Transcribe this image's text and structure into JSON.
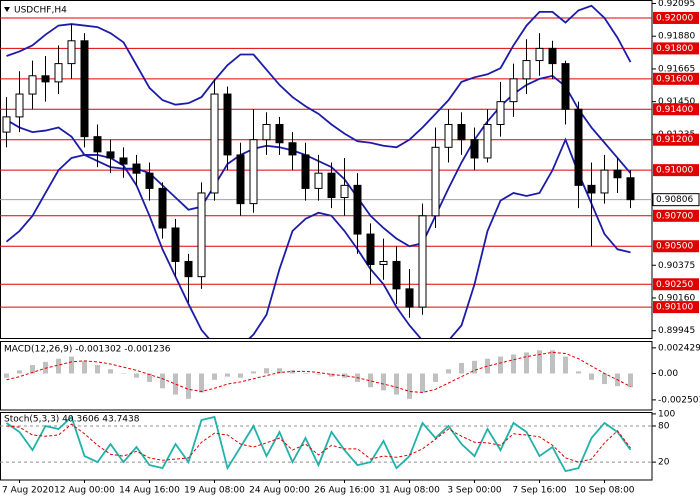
{
  "chart_data": [
    {
      "type": "candlestick",
      "title": "USDCHF,H4",
      "categories": [
        null,
        "7 Aug 2020",
        null,
        null,
        null,
        null,
        "12 Aug 00:00",
        null,
        null,
        null,
        null,
        "14 Aug 16:00",
        null,
        null,
        null,
        null,
        "19 Aug 08:00",
        null,
        null,
        null,
        null,
        "24 Aug 00:00",
        null,
        null,
        null,
        null,
        "26 Aug 16:00",
        null,
        null,
        null,
        null,
        "31 Aug 08:00",
        null,
        null,
        null,
        null,
        "3 Sep 00:00",
        null,
        null,
        null,
        null,
        "7 Sep 16:00",
        null,
        null,
        null,
        null,
        "10 Sep 08:00",
        null,
        null
      ],
      "open": [
        0.9125,
        0.9135,
        0.915,
        0.9162,
        0.9158,
        0.917,
        0.9185,
        0.9122,
        0.9112,
        0.9108,
        0.9104,
        0.9098,
        0.9088,
        0.9062,
        0.904,
        0.903,
        0.9085,
        0.915,
        0.911,
        0.9078,
        0.912,
        0.913,
        0.9118,
        0.911,
        0.9088,
        0.9098,
        0.9082,
        0.909,
        0.9058,
        0.9038,
        0.904,
        0.9022,
        0.901,
        0.907,
        0.9115,
        0.913,
        0.912,
        0.9108,
        0.913,
        0.9145,
        0.916,
        0.9172,
        0.918,
        0.917,
        0.914,
        0.909,
        0.9085,
        0.91,
        0.9095
      ],
      "high": [
        0.9148,
        0.9165,
        0.9172,
        0.9175,
        0.9182,
        0.9196,
        0.919,
        0.913,
        0.912,
        0.9115,
        0.911,
        0.9105,
        0.9092,
        0.9068,
        0.9045,
        0.9092,
        0.916,
        0.9155,
        0.9118,
        0.914,
        0.9138,
        0.9135,
        0.9125,
        0.9118,
        0.911,
        0.9105,
        0.9108,
        0.9098,
        0.9065,
        0.9055,
        0.905,
        0.9035,
        0.9078,
        0.9128,
        0.914,
        0.9138,
        0.9128,
        0.914,
        0.9158,
        0.917,
        0.9186,
        0.919,
        0.9185,
        0.9172,
        0.9145,
        0.9105,
        0.911,
        0.9108,
        0.91
      ],
      "low": [
        0.9115,
        0.9125,
        0.914,
        0.9145,
        0.915,
        0.916,
        0.9115,
        0.9102,
        0.9098,
        0.9095,
        0.909,
        0.908,
        0.9055,
        0.903,
        0.9013,
        0.9022,
        0.908,
        0.91,
        0.907,
        0.9072,
        0.911,
        0.911,
        0.91,
        0.908,
        0.908,
        0.9075,
        0.907,
        0.9045,
        0.9025,
        0.9028,
        0.9012,
        0.9003,
        0.9005,
        0.9062,
        0.9105,
        0.911,
        0.91,
        0.9105,
        0.9122,
        0.9135,
        0.915,
        0.9162,
        0.916,
        0.913,
        0.9075,
        0.905,
        0.9078,
        0.9085,
        0.9075
      ],
      "close": [
        0.9135,
        0.915,
        0.9162,
        0.9158,
        0.917,
        0.9185,
        0.9122,
        0.9112,
        0.9108,
        0.9104,
        0.9098,
        0.9088,
        0.9062,
        0.904,
        0.903,
        0.9085,
        0.915,
        0.911,
        0.9078,
        0.912,
        0.913,
        0.9118,
        0.911,
        0.9088,
        0.9098,
        0.9082,
        0.909,
        0.9058,
        0.9038,
        0.904,
        0.9022,
        0.901,
        0.907,
        0.9115,
        0.913,
        0.912,
        0.9108,
        0.913,
        0.9145,
        0.916,
        0.9172,
        0.918,
        0.917,
        0.914,
        0.909,
        0.9085,
        0.91,
        0.9095,
        0.90806
      ],
      "series": [
        {
          "color": "#1c1ca8",
          "values": [
            0.9175,
            0.9178,
            0.9182,
            0.9189,
            0.9195,
            0.9196,
            0.9195,
            0.9194,
            0.919,
            0.9184,
            0.9169,
            0.9154,
            0.9146,
            0.9143,
            0.9144,
            0.9148,
            0.9159,
            0.9169,
            0.9176,
            0.9176,
            0.9166,
            0.9156,
            0.9148,
            0.9142,
            0.9137,
            0.913,
            0.9124,
            0.9119,
            0.9118,
            0.9116,
            0.9115,
            0.912,
            0.9128,
            0.9137,
            0.9146,
            0.9158,
            0.9161,
            0.9163,
            0.9167,
            0.9182,
            0.9195,
            0.9204,
            0.9204,
            0.9197,
            0.9205,
            0.9208,
            0.92,
            0.9187,
            0.9171
          ]
        },
        {
          "color": "#1c1ca8",
          "values": [
            0.9133,
            0.9128,
            0.9125,
            0.9126,
            0.9128,
            0.9122,
            0.911,
            0.9106,
            0.9102,
            0.9101,
            0.9101,
            0.9098,
            0.909,
            0.9082,
            0.9074,
            0.9076,
            0.909,
            0.9104,
            0.911,
            0.9114,
            0.9116,
            0.9115,
            0.9113,
            0.911,
            0.9106,
            0.9102,
            0.9094,
            0.9082,
            0.907,
            0.9062,
            0.9055,
            0.905,
            0.9052,
            0.907,
            0.9088,
            0.9105,
            0.912,
            0.9132,
            0.9142,
            0.915,
            0.9156,
            0.916,
            0.9162,
            0.9155,
            0.914,
            0.9128,
            0.9118,
            0.9108,
            0.9098
          ]
        },
        {
          "color": "#1c1ca8",
          "values": [
            0.9053,
            0.906,
            0.907,
            0.9085,
            0.91,
            0.9108,
            0.911,
            0.911,
            0.9108,
            0.9103,
            0.909,
            0.907,
            0.9048,
            0.903,
            0.9012,
            0.8995,
            0.8985,
            0.8982,
            0.8984,
            0.8992,
            0.9005,
            0.9035,
            0.906,
            0.9068,
            0.9072,
            0.907,
            0.906,
            0.9048,
            0.9035,
            0.9025,
            0.901,
            0.8998,
            0.8988,
            0.8984,
            0.8988,
            0.8998,
            0.9025,
            0.906,
            0.908,
            0.9085,
            0.9083,
            0.9085,
            0.91,
            0.912,
            0.9098,
            0.9078,
            0.9058,
            0.9048,
            0.9046
          ]
        }
      ],
      "ylim": [
        0.89897,
        0.92118
      ],
      "yticks": [
        0.92095,
        {
          "value": 0.9188,
          "label": "0.91880"
        },
        0.91665,
        {
          "value": 0.9145,
          "label": "0.91450"
        },
        0.91235,
        0.90375,
        {
          "value": 0.9016,
          "label": "0.90160"
        },
        0.89945
      ],
      "levels": [
        {
          "value": 0.92,
          "label": "0.92000"
        },
        {
          "value": 0.918,
          "label": "0.91800"
        },
        {
          "value": 0.916,
          "label": "0.91600"
        },
        {
          "value": 0.914,
          "label": "0.91400"
        },
        {
          "value": 0.912,
          "label": "0.91200"
        },
        {
          "value": 0.91,
          "label": "0.91000"
        },
        {
          "value": 0.907,
          "label": "0.90700"
        },
        {
          "value": 0.905,
          "label": "0.90500"
        },
        {
          "value": 0.9025,
          "label": "0.90250"
        },
        {
          "value": 0.901,
          "label": "0.90100"
        }
      ],
      "level_color": "#e00000",
      "last_price": 0.90806
    },
    {
      "type": "macd",
      "title": "MACD(12,26,9) -0.001302 -0.001236",
      "series": [
        {
          "type": "bar",
          "color": "#c0c0c0",
          "values": [
            -0.0004,
            0.0003,
            0.0008,
            0.0011,
            0.0014,
            0.0016,
            0.0012,
            0.0008,
            0.0004,
            0.0,
            -0.0004,
            -0.0008,
            -0.0014,
            -0.002,
            -0.0024,
            -0.0018,
            -0.0006,
            -0.0003,
            -0.0004,
            0.0002,
            0.0005,
            0.0005,
            0.0003,
            0.0,
            -0.0001,
            -0.0003,
            -0.0004,
            -0.0008,
            -0.0013,
            -0.0016,
            -0.002,
            -0.0024,
            -0.0018,
            -0.0008,
            0.0004,
            0.001,
            0.0012,
            0.0014,
            0.0016,
            0.0018,
            0.002,
            0.0022,
            0.0022,
            0.0016,
            0.0002,
            -0.0006,
            -0.001,
            -0.0012,
            -0.001302
          ]
        },
        {
          "type": "line",
          "color": "#e00000",
          "dash": true,
          "values": [
            -0.0006,
            -0.0003,
            0.0001,
            0.0005,
            0.0008,
            0.0011,
            0.0012,
            0.0011,
            0.0009,
            0.0006,
            0.0003,
            -0.0001,
            -0.0005,
            -0.001,
            -0.0015,
            -0.0017,
            -0.0014,
            -0.001,
            -0.0008,
            -0.0005,
            -0.0002,
            0.0001,
            0.0002,
            0.0002,
            0.0001,
            -0.0001,
            -0.0002,
            -0.0004,
            -0.0007,
            -0.001,
            -0.0013,
            -0.0017,
            -0.0018,
            -0.0015,
            -0.0009,
            -0.0003,
            0.0003,
            0.0007,
            0.001,
            0.0013,
            0.0016,
            0.0018,
            0.002,
            0.0019,
            0.0014,
            0.0007,
            0.0,
            -0.0006,
            -0.001236
          ]
        }
      ],
      "ylim": [
        -0.00346,
        0.00308
      ],
      "yticks": [
        0.002429,
        {
          "value": 0,
          "label": "0.00"
        },
        -0.002501
      ]
    },
    {
      "type": "stochastic",
      "title": "Stoch(5,3,3) 40.3606 43.7438",
      "series": [
        {
          "type": "line",
          "color": "#20b2aa",
          "values": [
            85,
            70,
            40,
            80,
            75,
            95,
            30,
            20,
            50,
            20,
            45,
            15,
            10,
            50,
            20,
            90,
            95,
            10,
            45,
            80,
            30,
            70,
            20,
            60,
            15,
            70,
            40,
            15,
            20,
            55,
            10,
            30,
            85,
            60,
            80,
            50,
            30,
            75,
            40,
            85,
            70,
            30,
            45,
            5,
            10,
            60,
            85,
            70,
            40.3606
          ]
        },
        {
          "type": "line",
          "color": "#e00000",
          "dash": true,
          "values": [
            80,
            78,
            65,
            63,
            65,
            83,
            67,
            48,
            33,
            30,
            38,
            27,
            23,
            25,
            27,
            53,
            68,
            65,
            50,
            45,
            52,
            60,
            40,
            50,
            32,
            48,
            42,
            42,
            25,
            30,
            28,
            32,
            42,
            58,
            75,
            63,
            53,
            52,
            48,
            67,
            65,
            62,
            48,
            27,
            20,
            25,
            52,
            72,
            43.7438
          ]
        }
      ],
      "ylim": [
        -9.7,
        103.2
      ],
      "yticks": [
        100,
        80,
        20
      ],
      "levels": [
        80,
        20
      ]
    }
  ]
}
